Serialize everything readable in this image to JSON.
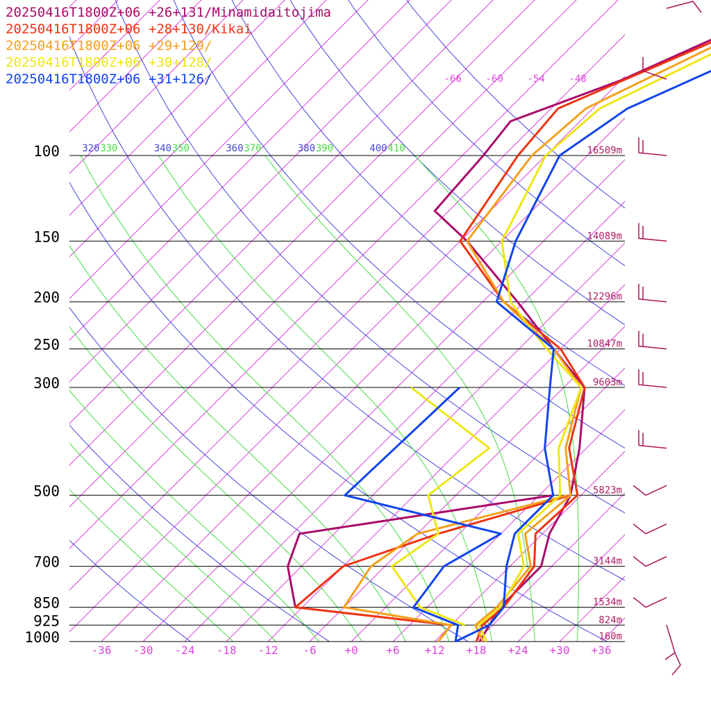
{
  "legend": [
    {
      "text": "20250416T1800Z+06 +26+131/Minamidaitojima",
      "color": "#aa0a6a"
    },
    {
      "text": "20250416T1800Z+06 +28+130/Kikai",
      "color": "#ee3311"
    },
    {
      "text": "20250416T1800Z+06 +29+129/",
      "color": "#f5a01a"
    },
    {
      "text": "20250416T1800Z+06 +30+128/",
      "color": "#eee616"
    },
    {
      "text": "20250416T1800Z+06 +31+126/",
      "color": "#1144ee"
    }
  ],
  "colors": {
    "isotherm": "#dd44dd",
    "dry_adiabat": "#4444dd",
    "moist_adiabat": "#44dd44",
    "isobar": "#000000",
    "height_label": "#aa2266",
    "barb": "#aa1155"
  },
  "chart_data": {
    "type": "line",
    "title": "",
    "xlabel": "",
    "ylabel": "",
    "x_unit": "temperature (°C), skewed",
    "y_unit": "pressure (hPa), log scale, inverted",
    "xlim": [
      -40,
      40
    ],
    "ylim": [
      1000,
      100
    ],
    "grid": true,
    "legend_placement": "top-left",
    "pressure_levels": [
      {
        "p": 100,
        "label": "100",
        "height": "16509m"
      },
      {
        "p": 150,
        "label": "150",
        "height": "14089m"
      },
      {
        "p": 200,
        "label": "200",
        "height": "12296m"
      },
      {
        "p": 250,
        "label": "250",
        "height": "10847m"
      },
      {
        "p": 300,
        "label": "300",
        "height": "9603m"
      },
      {
        "p": 500,
        "label": "500",
        "height": "5823m"
      },
      {
        "p": 700,
        "label": "700",
        "height": "3144m"
      },
      {
        "p": 850,
        "label": "850",
        "height": "1534m"
      },
      {
        "p": 925,
        "label": "925",
        "height": "824m"
      },
      {
        "p": 1000,
        "label": "1000",
        "height": "160m"
      }
    ],
    "x_ticks": [
      {
        "v": -36,
        "label": "-36"
      },
      {
        "v": -30,
        "label": "-30"
      },
      {
        "v": -24,
        "label": "-24"
      },
      {
        "v": -18,
        "label": "-18"
      },
      {
        "v": -12,
        "label": "-12"
      },
      {
        "v": -6,
        "label": "-6"
      },
      {
        "v": 0,
        "label": "+0"
      },
      {
        "v": 6,
        "label": "+6"
      },
      {
        "v": 12,
        "label": "+12"
      },
      {
        "v": 18,
        "label": "+18"
      },
      {
        "v": 24,
        "label": "+24"
      },
      {
        "v": 30,
        "label": "+30"
      },
      {
        "v": 36,
        "label": "+36"
      }
    ],
    "isotherm_labels": [
      "-66",
      "-60",
      "-54",
      "-48"
    ],
    "theta_labels": [
      {
        "label": "320",
        "kind": "dry"
      },
      {
        "label": "330",
        "kind": "moist"
      },
      {
        "label": "340",
        "kind": "dry"
      },
      {
        "label": "350",
        "kind": "moist"
      },
      {
        "label": "360",
        "kind": "dry"
      },
      {
        "label": "370",
        "kind": "moist"
      },
      {
        "label": "380",
        "kind": "dry"
      },
      {
        "label": "390",
        "kind": "moist"
      },
      {
        "label": "400",
        "kind": "dry"
      },
      {
        "label": "410",
        "kind": "moist"
      }
    ],
    "series": [
      {
        "name": "20250416T1800Z+06 +26+131/Minamidaitojima",
        "temperature": [
          [
            1000,
            18.5
          ],
          [
            925,
            17.5
          ],
          [
            850,
            16.5
          ],
          [
            700,
            16.5
          ],
          [
            600,
            13
          ],
          [
            500,
            10.5
          ],
          [
            400,
            5
          ],
          [
            300,
            -3
          ],
          [
            250,
            -13
          ],
          [
            200,
            -25
          ],
          [
            150,
            -41
          ],
          [
            130,
            -50
          ],
          [
            100,
            -51
          ],
          [
            85,
            -52
          ],
          [
            70,
            -42
          ],
          [
            55,
            -33
          ]
        ],
        "dewpoint": [
          [
            850,
            -13
          ],
          [
            700,
            -20
          ],
          [
            600,
            -23
          ],
          [
            500,
            8
          ]
        ]
      },
      {
        "name": "20250416T1800Z+06 +28+130/Kikai",
        "temperature": [
          [
            1000,
            18
          ],
          [
            925,
            16.5
          ],
          [
            850,
            17
          ],
          [
            700,
            15.5
          ],
          [
            600,
            11
          ],
          [
            500,
            11.5
          ],
          [
            400,
            3.5
          ],
          [
            300,
            -3
          ],
          [
            250,
            -12
          ],
          [
            200,
            -27
          ],
          [
            150,
            -42
          ],
          [
            100,
            -46
          ],
          [
            80,
            -47
          ],
          [
            55,
            -32
          ]
        ],
        "dewpoint": [
          [
            1000,
            12.5
          ],
          [
            925,
            12
          ],
          [
            850,
            -13
          ],
          [
            700,
            -12
          ],
          [
            600,
            -3
          ],
          [
            500,
            10.5
          ]
        ]
      },
      {
        "name": "20250416T1800Z+06 +29+129/",
        "temperature": [
          [
            1000,
            19
          ],
          [
            925,
            15.5
          ],
          [
            850,
            16
          ],
          [
            700,
            15
          ],
          [
            600,
            9.5
          ],
          [
            500,
            10.5
          ],
          [
            400,
            3
          ],
          [
            300,
            -3.5
          ],
          [
            250,
            -13
          ],
          [
            200,
            -27
          ],
          [
            150,
            -41
          ],
          [
            100,
            -44
          ],
          [
            80,
            -43
          ],
          [
            55,
            -31
          ]
        ],
        "dewpoint": [
          [
            1000,
            12.5
          ],
          [
            925,
            12
          ],
          [
            850,
            -6
          ],
          [
            700,
            -8
          ],
          [
            600,
            -6
          ],
          [
            500,
            10
          ]
        ]
      },
      {
        "name": "20250416T1800Z+06 +30+128/",
        "temperature": [
          [
            1000,
            19.5
          ],
          [
            925,
            16
          ],
          [
            850,
            16.5
          ],
          [
            700,
            14
          ],
          [
            600,
            8.5
          ],
          [
            500,
            9
          ],
          [
            400,
            2
          ],
          [
            300,
            -3.5
          ],
          [
            250,
            -14
          ],
          [
            200,
            -26
          ],
          [
            150,
            -36
          ],
          [
            100,
            -42
          ],
          [
            80,
            -41
          ],
          [
            55,
            -29
          ]
        ],
        "dewpoint": [
          [
            925,
            14
          ],
          [
            850,
            5
          ],
          [
            700,
            -5
          ],
          [
            600,
            -3
          ],
          [
            500,
            -10
          ],
          [
            400,
            -8
          ],
          [
            300,
            -28
          ]
        ]
      },
      {
        "name": "20250416T1800Z+06 +31+126/",
        "temperature": [
          [
            1000,
            15
          ],
          [
            925,
            17.5
          ],
          [
            850,
            17
          ],
          [
            700,
            11.5
          ],
          [
            600,
            8
          ],
          [
            500,
            8
          ],
          [
            400,
            0
          ],
          [
            300,
            -8
          ],
          [
            250,
            -13
          ],
          [
            200,
            -28
          ],
          [
            150,
            -34
          ],
          [
            100,
            -40
          ],
          [
            80,
            -37
          ],
          [
            55,
            -23
          ]
        ],
        "dewpoint": [
          [
            1000,
            15
          ],
          [
            925,
            13
          ],
          [
            850,
            4
          ],
          [
            700,
            2.5
          ],
          [
            600,
            6
          ],
          [
            500,
            -22
          ],
          [
            300,
            -21
          ]
        ]
      }
    ],
    "wind_barbs": [
      {
        "p": 100
      },
      {
        "p": 150
      },
      {
        "p": 200
      },
      {
        "p": 250
      },
      {
        "p": 300
      },
      {
        "p": 400
      },
      {
        "p": 500
      },
      {
        "p": 600
      },
      {
        "p": 700
      },
      {
        "p": 850
      },
      {
        "p": 1000
      }
    ]
  }
}
